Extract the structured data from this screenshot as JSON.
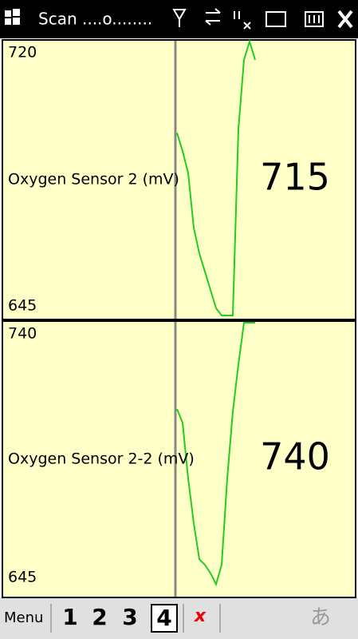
{
  "status_bar": {
    "title": "Scan ....o........"
  },
  "chart_data": [
    {
      "type": "line",
      "title": "Oxygen Sensor 2 (mV)",
      "current_value": 715,
      "color": "#22cc22",
      "values": [
        695,
        690,
        684,
        669,
        662,
        657,
        652,
        647,
        645,
        645,
        645,
        696,
        715,
        720,
        715
      ],
      "ylim": [
        645,
        720
      ],
      "yticks": [
        720,
        645
      ]
    },
    {
      "type": "line",
      "title": "Oxygen Sensor 2-2 (mV)",
      "current_value": 740,
      "color": "#22cc22",
      "values": [
        709,
        704,
        684,
        668,
        655,
        653,
        650,
        646,
        653,
        684,
        708,
        725,
        740,
        740,
        740
      ],
      "ylim": [
        645,
        740
      ],
      "yticks": [
        740,
        645
      ]
    }
  ],
  "toolbar": {
    "menu": "Menu",
    "pages": [
      "1",
      "2",
      "3",
      "4"
    ],
    "close": "x",
    "ime": "あ"
  }
}
